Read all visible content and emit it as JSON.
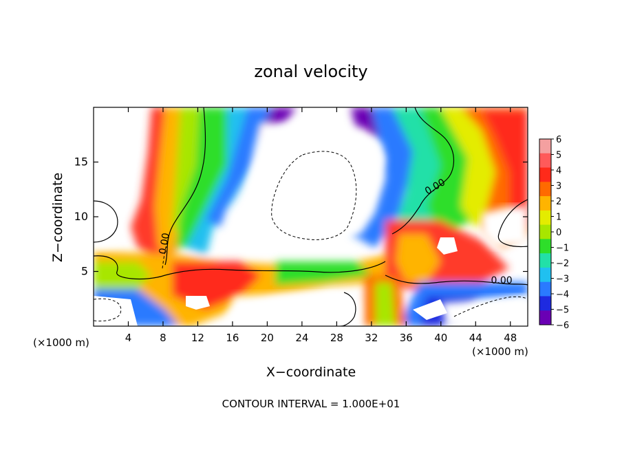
{
  "chart_data": {
    "type": "heatmap",
    "title": "zonal velocity",
    "xlabel": "X−coordinate",
    "ylabel": "Z−coordinate",
    "x_unit_left": "(×1000 m)",
    "x_unit_right": "(×1000 m)",
    "footer": "CONTOUR INTERVAL = 1.000E+01",
    "xlim": [
      0,
      50
    ],
    "ylim": [
      0,
      20
    ],
    "x_ticks": [
      4,
      8,
      12,
      16,
      20,
      24,
      28,
      32,
      36,
      40,
      44,
      48
    ],
    "y_ticks": [
      5,
      10,
      15
    ],
    "contour_labels": [
      {
        "text": "0.00",
        "x": 8.5,
        "y": 7.5
      },
      {
        "text": "0.00",
        "x": 39.5,
        "y": 12.5
      },
      {
        "text": "0.00",
        "x": 47,
        "y": 3.9
      }
    ],
    "colorbar": {
      "labels": [
        "6",
        "5",
        "4",
        "3",
        "2",
        "1",
        "0",
        "−1",
        "−2",
        "−3",
        "−4",
        "−5",
        "−6"
      ],
      "colors": [
        "#f4a0a0",
        "#ff5a5a",
        "#ff2a1a",
        "#ff6a00",
        "#ffb400",
        "#e4ec00",
        "#a8e600",
        "#2ede2a",
        "#22e0a8",
        "#20c0f0",
        "#2a7aff",
        "#1e2ae0",
        "#6a00b4"
      ]
    },
    "grid": false
  }
}
